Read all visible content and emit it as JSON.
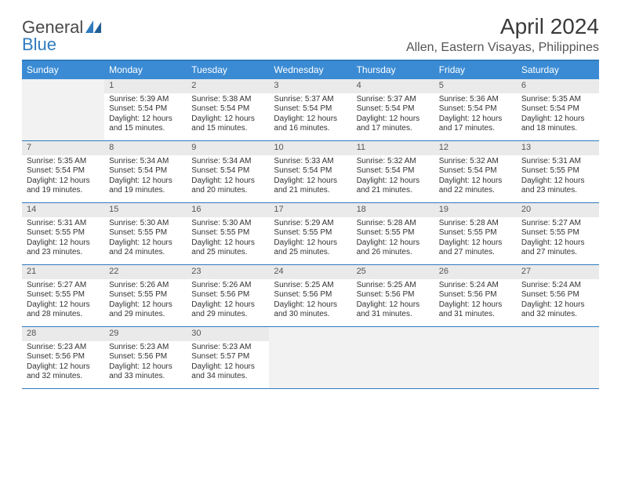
{
  "logo": {
    "word1": "General",
    "word2": "Blue"
  },
  "title": "April 2024",
  "location": "Allen, Eastern Visayas, Philippines",
  "colors": {
    "header_bg": "#3b8bd4",
    "header_text": "#ffffff",
    "border": "#2f7bbf",
    "daynum_bg": "#eaeaea",
    "empty_bg": "#f2f2f2",
    "text": "#333333"
  },
  "day_names": [
    "Sunday",
    "Monday",
    "Tuesday",
    "Wednesday",
    "Thursday",
    "Friday",
    "Saturday"
  ],
  "weeks": [
    [
      {
        "n": "",
        "empty": true
      },
      {
        "n": "1",
        "sr": "Sunrise: 5:39 AM",
        "ss": "Sunset: 5:54 PM",
        "dl": "Daylight: 12 hours and 15 minutes."
      },
      {
        "n": "2",
        "sr": "Sunrise: 5:38 AM",
        "ss": "Sunset: 5:54 PM",
        "dl": "Daylight: 12 hours and 15 minutes."
      },
      {
        "n": "3",
        "sr": "Sunrise: 5:37 AM",
        "ss": "Sunset: 5:54 PM",
        "dl": "Daylight: 12 hours and 16 minutes."
      },
      {
        "n": "4",
        "sr": "Sunrise: 5:37 AM",
        "ss": "Sunset: 5:54 PM",
        "dl": "Daylight: 12 hours and 17 minutes."
      },
      {
        "n": "5",
        "sr": "Sunrise: 5:36 AM",
        "ss": "Sunset: 5:54 PM",
        "dl": "Daylight: 12 hours and 17 minutes."
      },
      {
        "n": "6",
        "sr": "Sunrise: 5:35 AM",
        "ss": "Sunset: 5:54 PM",
        "dl": "Daylight: 12 hours and 18 minutes."
      }
    ],
    [
      {
        "n": "7",
        "sr": "Sunrise: 5:35 AM",
        "ss": "Sunset: 5:54 PM",
        "dl": "Daylight: 12 hours and 19 minutes."
      },
      {
        "n": "8",
        "sr": "Sunrise: 5:34 AM",
        "ss": "Sunset: 5:54 PM",
        "dl": "Daylight: 12 hours and 19 minutes."
      },
      {
        "n": "9",
        "sr": "Sunrise: 5:34 AM",
        "ss": "Sunset: 5:54 PM",
        "dl": "Daylight: 12 hours and 20 minutes."
      },
      {
        "n": "10",
        "sr": "Sunrise: 5:33 AM",
        "ss": "Sunset: 5:54 PM",
        "dl": "Daylight: 12 hours and 21 minutes."
      },
      {
        "n": "11",
        "sr": "Sunrise: 5:32 AM",
        "ss": "Sunset: 5:54 PM",
        "dl": "Daylight: 12 hours and 21 minutes."
      },
      {
        "n": "12",
        "sr": "Sunrise: 5:32 AM",
        "ss": "Sunset: 5:54 PM",
        "dl": "Daylight: 12 hours and 22 minutes."
      },
      {
        "n": "13",
        "sr": "Sunrise: 5:31 AM",
        "ss": "Sunset: 5:55 PM",
        "dl": "Daylight: 12 hours and 23 minutes."
      }
    ],
    [
      {
        "n": "14",
        "sr": "Sunrise: 5:31 AM",
        "ss": "Sunset: 5:55 PM",
        "dl": "Daylight: 12 hours and 23 minutes."
      },
      {
        "n": "15",
        "sr": "Sunrise: 5:30 AM",
        "ss": "Sunset: 5:55 PM",
        "dl": "Daylight: 12 hours and 24 minutes."
      },
      {
        "n": "16",
        "sr": "Sunrise: 5:30 AM",
        "ss": "Sunset: 5:55 PM",
        "dl": "Daylight: 12 hours and 25 minutes."
      },
      {
        "n": "17",
        "sr": "Sunrise: 5:29 AM",
        "ss": "Sunset: 5:55 PM",
        "dl": "Daylight: 12 hours and 25 minutes."
      },
      {
        "n": "18",
        "sr": "Sunrise: 5:28 AM",
        "ss": "Sunset: 5:55 PM",
        "dl": "Daylight: 12 hours and 26 minutes."
      },
      {
        "n": "19",
        "sr": "Sunrise: 5:28 AM",
        "ss": "Sunset: 5:55 PM",
        "dl": "Daylight: 12 hours and 27 minutes."
      },
      {
        "n": "20",
        "sr": "Sunrise: 5:27 AM",
        "ss": "Sunset: 5:55 PM",
        "dl": "Daylight: 12 hours and 27 minutes."
      }
    ],
    [
      {
        "n": "21",
        "sr": "Sunrise: 5:27 AM",
        "ss": "Sunset: 5:55 PM",
        "dl": "Daylight: 12 hours and 28 minutes."
      },
      {
        "n": "22",
        "sr": "Sunrise: 5:26 AM",
        "ss": "Sunset: 5:55 PM",
        "dl": "Daylight: 12 hours and 29 minutes."
      },
      {
        "n": "23",
        "sr": "Sunrise: 5:26 AM",
        "ss": "Sunset: 5:56 PM",
        "dl": "Daylight: 12 hours and 29 minutes."
      },
      {
        "n": "24",
        "sr": "Sunrise: 5:25 AM",
        "ss": "Sunset: 5:56 PM",
        "dl": "Daylight: 12 hours and 30 minutes."
      },
      {
        "n": "25",
        "sr": "Sunrise: 5:25 AM",
        "ss": "Sunset: 5:56 PM",
        "dl": "Daylight: 12 hours and 31 minutes."
      },
      {
        "n": "26",
        "sr": "Sunrise: 5:24 AM",
        "ss": "Sunset: 5:56 PM",
        "dl": "Daylight: 12 hours and 31 minutes."
      },
      {
        "n": "27",
        "sr": "Sunrise: 5:24 AM",
        "ss": "Sunset: 5:56 PM",
        "dl": "Daylight: 12 hours and 32 minutes."
      }
    ],
    [
      {
        "n": "28",
        "sr": "Sunrise: 5:23 AM",
        "ss": "Sunset: 5:56 PM",
        "dl": "Daylight: 12 hours and 32 minutes."
      },
      {
        "n": "29",
        "sr": "Sunrise: 5:23 AM",
        "ss": "Sunset: 5:56 PM",
        "dl": "Daylight: 12 hours and 33 minutes."
      },
      {
        "n": "30",
        "sr": "Sunrise: 5:23 AM",
        "ss": "Sunset: 5:57 PM",
        "dl": "Daylight: 12 hours and 34 minutes."
      },
      {
        "n": "",
        "empty": true
      },
      {
        "n": "",
        "empty": true
      },
      {
        "n": "",
        "empty": true
      },
      {
        "n": "",
        "empty": true
      }
    ]
  ]
}
